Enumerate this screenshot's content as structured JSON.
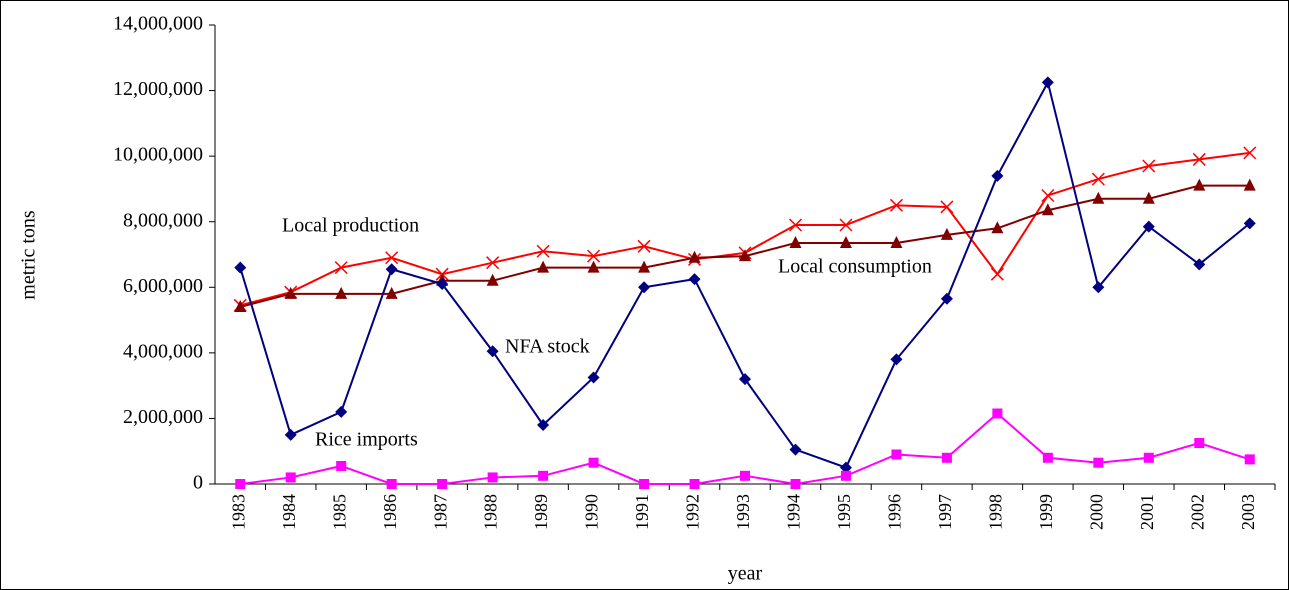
{
  "chart_data": {
    "type": "line",
    "xlabel": "year",
    "ylabel": "metric tons",
    "categories": [
      "1983",
      "1984",
      "1985",
      "1986",
      "1987",
      "1988",
      "1989",
      "1990",
      "1991",
      "1992",
      "1993",
      "1994",
      "1995",
      "1996",
      "1997",
      "1998",
      "1999",
      "2000",
      "2001",
      "2002",
      "2003"
    ],
    "series": [
      {
        "name": "Local production",
        "color": "#ff0000",
        "marker": "x",
        "values": [
          5450000,
          5850000,
          6600000,
          6900000,
          6400000,
          6750000,
          7100000,
          6950000,
          7250000,
          6850000,
          7050000,
          7900000,
          7900000,
          8500000,
          8450000,
          6400000,
          8800000,
          9300000,
          9700000,
          9900000,
          10100000
        ]
      },
      {
        "name": "Local consumption",
        "color": "#800000",
        "marker": "triangle",
        "values": [
          5400000,
          5800000,
          5800000,
          5800000,
          6200000,
          6200000,
          6600000,
          6600000,
          6600000,
          6900000,
          6950000,
          7350000,
          7350000,
          7350000,
          7600000,
          7800000,
          8350000,
          8700000,
          8700000,
          9100000,
          9100000
        ]
      },
      {
        "name": "NFA stock",
        "color": "#000080",
        "marker": "diamond",
        "values": [
          6600000,
          1500000,
          2200000,
          6550000,
          6100000,
          4050000,
          1800000,
          3250000,
          6000000,
          6250000,
          3200000,
          1050000,
          500000,
          3800000,
          5650000,
          9400000,
          12250000,
          6000000,
          7850000,
          6700000,
          7950000
        ]
      },
      {
        "name": "Rice imports",
        "color": "#ff00ff",
        "marker": "square",
        "values": [
          0,
          200000,
          550000,
          0,
          0,
          200000,
          250000,
          650000,
          0,
          0,
          250000,
          0,
          250000,
          900000,
          800000,
          2150000,
          800000,
          650000,
          800000,
          1250000,
          750000
        ]
      }
    ],
    "ylim": [
      0,
      14000000
    ],
    "yticks": [
      0,
      {
        "value": 2000000,
        "label": "2,000,000"
      },
      {
        "value": 4000000,
        "label": "4,000,000"
      },
      {
        "value": 6000000,
        "label": "6,000,000"
      },
      {
        "value": 8000000,
        "label": "8,000,000"
      },
      {
        "value": 10000000,
        "label": "10,000,000"
      },
      {
        "value": 12000000,
        "label": "12,000,000"
      },
      {
        "value": 14000000,
        "label": "14,000,000"
      }
    ],
    "grid": false
  }
}
